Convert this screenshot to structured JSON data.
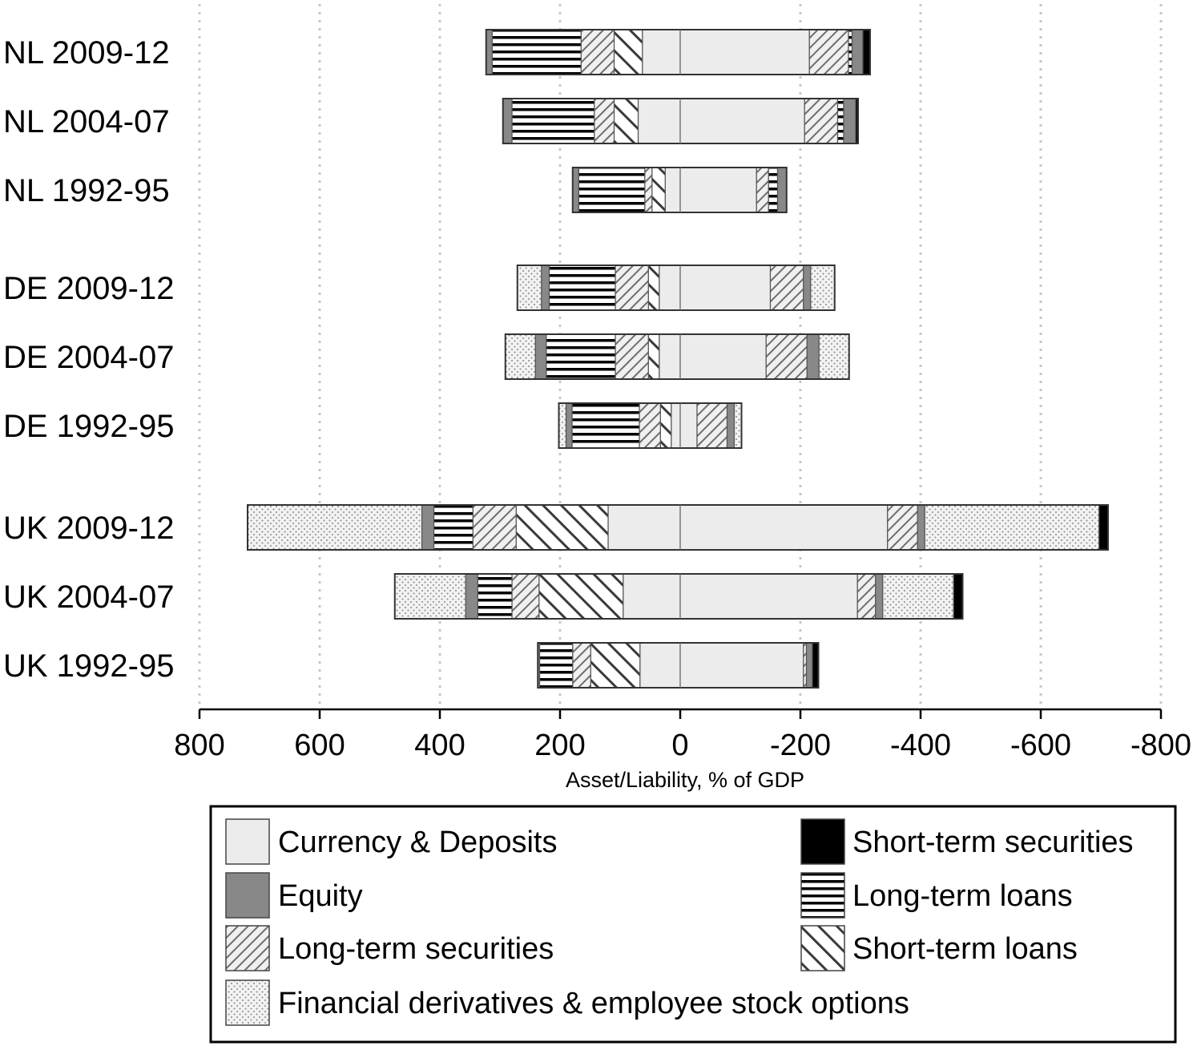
{
  "chart_data": {
    "type": "bar",
    "orientation": "horizontal",
    "stacked": "diverging",
    "title": "",
    "xlabel": "Asset/Liability, % of GDP",
    "ylabel": "",
    "xlim": [
      800,
      -800
    ],
    "x_ticks": [
      "800",
      "600",
      "400",
      "200",
      "0",
      "-200",
      "-400",
      "-600",
      "-800"
    ],
    "x_tick_values": [
      800,
      600,
      400,
      200,
      0,
      -200,
      -400,
      -600,
      -800
    ],
    "grid": "vertical dotted",
    "legend_position": "bottom",
    "categories": [
      "NL 2009-12",
      "NL 2004-07",
      "NL 1992-95",
      "DE 2009-12",
      "DE 2004-07",
      "DE 1992-95",
      "UK 2009-12",
      "UK 2004-07",
      "UK 1992-95"
    ],
    "groups": [
      [
        "NL 2009-12",
        "NL 2004-07",
        "NL 1992-95"
      ],
      [
        "DE 2009-12",
        "DE 2004-07",
        "DE 1992-95"
      ],
      [
        "UK 2009-12",
        "UK 2004-07",
        "UK 1992-95"
      ]
    ],
    "series": [
      {
        "key": "cd",
        "name": "Currency & Deposits",
        "pattern": "solid-light",
        "color": "#ececec",
        "assets": [
          63,
          70,
          25,
          35,
          35,
          15,
          120,
          95,
          67
        ],
        "liabilities": [
          -215,
          -207,
          -127,
          -150,
          -143,
          -28,
          -345,
          -295,
          -205
        ]
      },
      {
        "key": "eq",
        "name": "Equity",
        "pattern": "solid-gray",
        "color": "#888888",
        "assets": [
          10,
          15,
          10,
          13,
          18,
          10,
          20,
          20,
          3
        ],
        "liabilities": [
          -18,
          -20,
          -15,
          -12,
          -20,
          -12,
          -12,
          -12,
          -10
        ]
      },
      {
        "key": "lts",
        "name": "Long-term securities",
        "pattern": "diagonal-thin",
        "color": "#bbbbbb",
        "assets": [
          55,
          33,
          12,
          55,
          55,
          35,
          72,
          45,
          30
        ],
        "liabilities": [
          -65,
          -55,
          -20,
          -55,
          -68,
          -50,
          -50,
          -30,
          -5
        ]
      },
      {
        "key": "fd",
        "name": "Financial derivatives & employee stock options",
        "pattern": "dots",
        "color": "#e6e6e6",
        "assets": [
          0,
          0,
          0,
          40,
          50,
          12,
          290,
          118,
          0
        ],
        "liabilities": [
          0,
          0,
          0,
          -40,
          -50,
          -12,
          -290,
          -118,
          0
        ]
      },
      {
        "key": "sts",
        "name": "Short-term securities",
        "pattern": "solid-black",
        "color": "#000000",
        "assets": [
          0,
          0,
          0,
          0,
          0,
          0,
          0,
          0,
          0
        ],
        "liabilities": [
          -12,
          -4,
          0,
          0,
          0,
          0,
          -15,
          -15,
          -10
        ]
      },
      {
        "key": "ltl",
        "name": "Long-term loans",
        "pattern": "horizontal-lines",
        "color": "#ffffff",
        "assets": [
          148,
          137,
          110,
          110,
          115,
          112,
          65,
          57,
          55
        ],
        "liabilities": [
          -6,
          -10,
          -15,
          0,
          0,
          0,
          0,
          0,
          0
        ]
      },
      {
        "key": "stl",
        "name": "Short-term loans",
        "pattern": "diagonal-thick",
        "color": "#ffffff",
        "assets": [
          47,
          40,
          22,
          18,
          18,
          18,
          153,
          140,
          82
        ],
        "liabilities": [
          0,
          0,
          0,
          0,
          0,
          0,
          0,
          0,
          0
        ]
      }
    ],
    "stack_order": [
      "cd",
      "stl",
      "lts",
      "ltl",
      "eq",
      "fd",
      "sts"
    ],
    "legend": {
      "left": [
        "cd",
        "eq",
        "lts",
        "fd"
      ],
      "right": [
        "sts",
        "ltl",
        "stl"
      ]
    }
  }
}
